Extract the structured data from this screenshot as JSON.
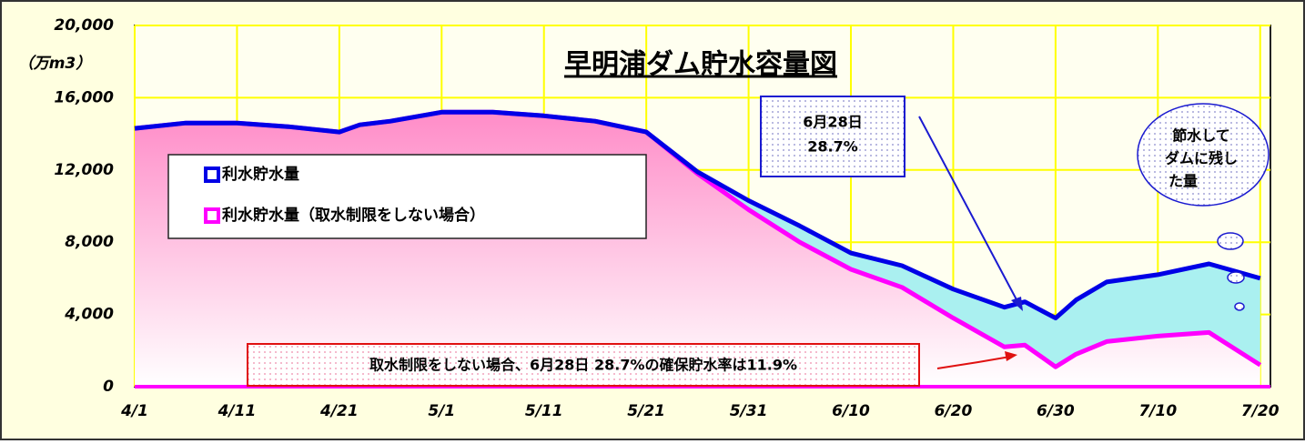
{
  "chart_data": {
    "type": "line",
    "title": "早明浦ダム貯水容量図",
    "y_unit": "（万m3）",
    "x": [
      "4/1",
      "4/6",
      "4/11",
      "4/16",
      "4/21",
      "4/23",
      "4/26",
      "5/1",
      "5/6",
      "5/11",
      "5/16",
      "5/21",
      "5/26",
      "5/31",
      "6/5",
      "6/10",
      "6/15",
      "6/20",
      "6/25",
      "6/27",
      "6/30",
      "7/2",
      "7/5",
      "7/10",
      "7/15",
      "7/20"
    ],
    "series": [
      {
        "name": "利水貯水量",
        "color": "#0000e6",
        "values": [
          14300,
          14600,
          14600,
          14400,
          14100,
          14500,
          14700,
          15200,
          15200,
          15000,
          14700,
          14100,
          11900,
          10300,
          8900,
          7400,
          6700,
          5400,
          4400,
          4700,
          3800,
          4800,
          5800,
          6200,
          6800,
          6000
        ]
      },
      {
        "name": "利水貯水量（取水制限をしない場合）",
        "color": "#ff00ff",
        "values": [
          14300,
          14600,
          14600,
          14400,
          14100,
          14500,
          14700,
          15200,
          15200,
          15000,
          14700,
          14100,
          11800,
          9800,
          8000,
          6500,
          5500,
          3800,
          2200,
          2300,
          1100,
          1800,
          2500,
          2800,
          3000,
          1200
        ]
      }
    ],
    "xlim": [
      "4/1",
      "7/21"
    ],
    "xticks": [
      "4/1",
      "4/11",
      "4/21",
      "5/1",
      "5/11",
      "5/21",
      "5/31",
      "6/10",
      "6/20",
      "6/30",
      "7/10",
      "7/20"
    ],
    "ylim": [
      0,
      20000
    ],
    "yticks": [
      0,
      {
        "value": 4000,
        "label": "4,000"
      },
      {
        "value": 8000,
        "label": "8,000"
      },
      {
        "value": 12000,
        "label": "12,000"
      },
      {
        "value": 16000,
        "label": "16,000"
      },
      {
        "value": 20000,
        "label": "20,000"
      }
    ],
    "grid": true,
    "annotations": {
      "callout": [
        "6月28日",
        "28.7%"
      ],
      "cloud": [
        "節水して",
        "ダムに残し",
        "た量"
      ],
      "note": "取水制限をしない場合、6月28日 28.7%の確保貯水率は11.9%"
    }
  }
}
